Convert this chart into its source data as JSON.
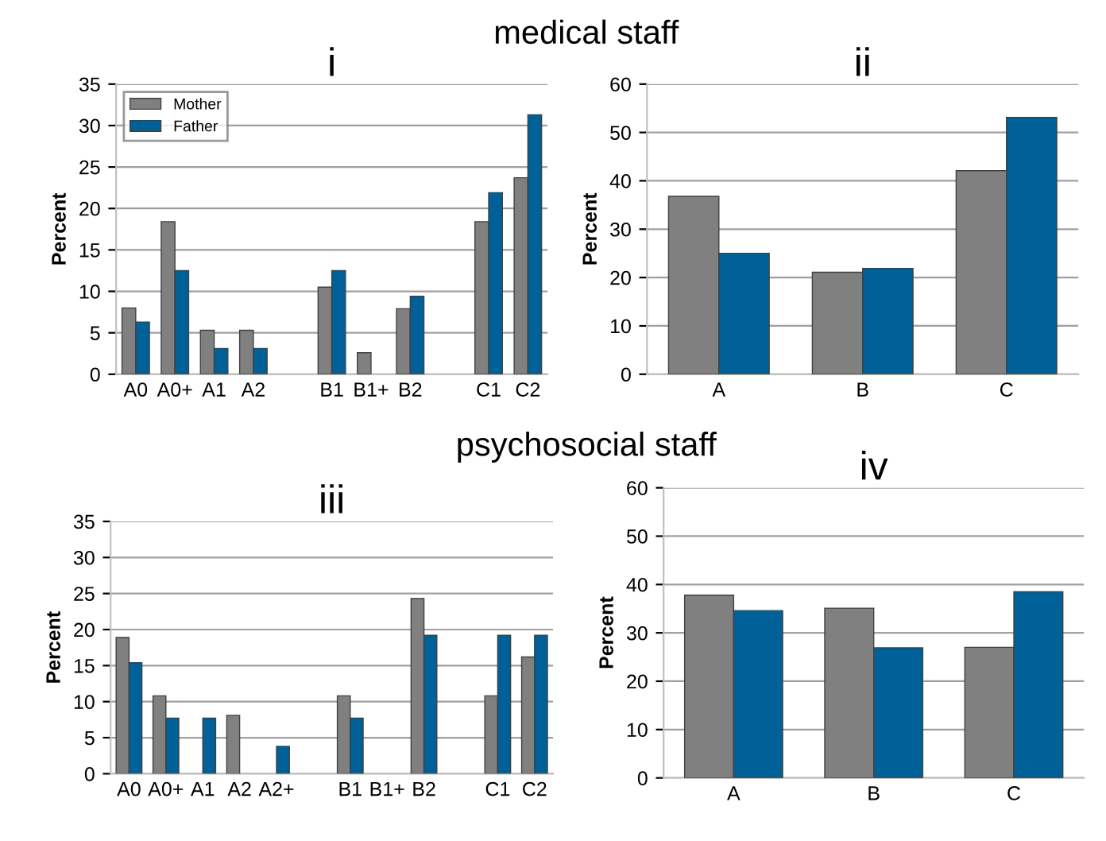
{
  "chart_data": [
    {
      "type": "bar",
      "title": "i",
      "subtitle": "medical staff",
      "ylabel": "Percent",
      "categories": [
        "A0",
        "A0+",
        "A1",
        "A2",
        null,
        "B1",
        "B1+",
        "B2",
        null,
        "C1",
        "C2"
      ],
      "ylim": [
        0,
        35
      ],
      "yticks": [
        0,
        5,
        10,
        15,
        20,
        25,
        30,
        35
      ],
      "grid": "y",
      "legend": "top left",
      "series": [
        {
          "name": "Mother",
          "color": "#808080",
          "values": [
            8,
            18.4,
            5.3,
            5.3,
            null,
            10.5,
            2.6,
            7.9,
            null,
            18.4,
            23.7
          ]
        },
        {
          "name": "Father",
          "color": "#006198",
          "values": [
            6.3,
            12.5,
            3.1,
            3.1,
            null,
            12.5,
            0,
            9.4,
            null,
            21.9,
            31.3
          ]
        }
      ]
    },
    {
      "type": "bar",
      "title": "ii",
      "ylabel": "Percent",
      "categories": [
        "A",
        "B",
        "C"
      ],
      "ylim": [
        0,
        60
      ],
      "yticks": [
        0,
        10,
        20,
        30,
        40,
        50,
        60
      ],
      "grid": "y",
      "series": [
        {
          "color": "#808080",
          "values": [
            36.8,
            21.1,
            42.1
          ]
        },
        {
          "color": "#006198",
          "values": [
            25,
            21.9,
            53.1
          ]
        }
      ]
    },
    {
      "type": "bar",
      "title": "iii",
      "subtitle": "psychosocial staff",
      "ylabel": "Percent",
      "categories": [
        "A0",
        "A0+",
        "A1",
        "A2",
        "A2+",
        null,
        "B1",
        "B1+",
        "B2",
        null,
        "C1",
        "C2"
      ],
      "ylim": [
        0,
        35
      ],
      "yticks": [
        0,
        5,
        10,
        15,
        20,
        25,
        30,
        35
      ],
      "grid": "y",
      "series": [
        {
          "color": "#808080",
          "values": [
            18.9,
            10.8,
            0,
            8.1,
            0,
            null,
            10.8,
            0,
            24.3,
            null,
            10.8,
            16.2
          ]
        },
        {
          "color": "#006198",
          "values": [
            15.4,
            7.7,
            7.7,
            0,
            3.8,
            null,
            7.7,
            0,
            19.2,
            null,
            19.2,
            19.2
          ]
        }
      ]
    },
    {
      "type": "bar",
      "title": "iv",
      "ylabel": "Percent",
      "categories": [
        "A",
        "B",
        "C"
      ],
      "ylim": [
        0,
        60
      ],
      "yticks": [
        0,
        10,
        20,
        30,
        40,
        50,
        60
      ],
      "grid": "y",
      "series": [
        {
          "color": "#808080",
          "values": [
            37.8,
            35.1,
            27.0
          ]
        },
        {
          "color": "#006198",
          "values": [
            34.6,
            26.9,
            38.5
          ]
        }
      ]
    }
  ]
}
